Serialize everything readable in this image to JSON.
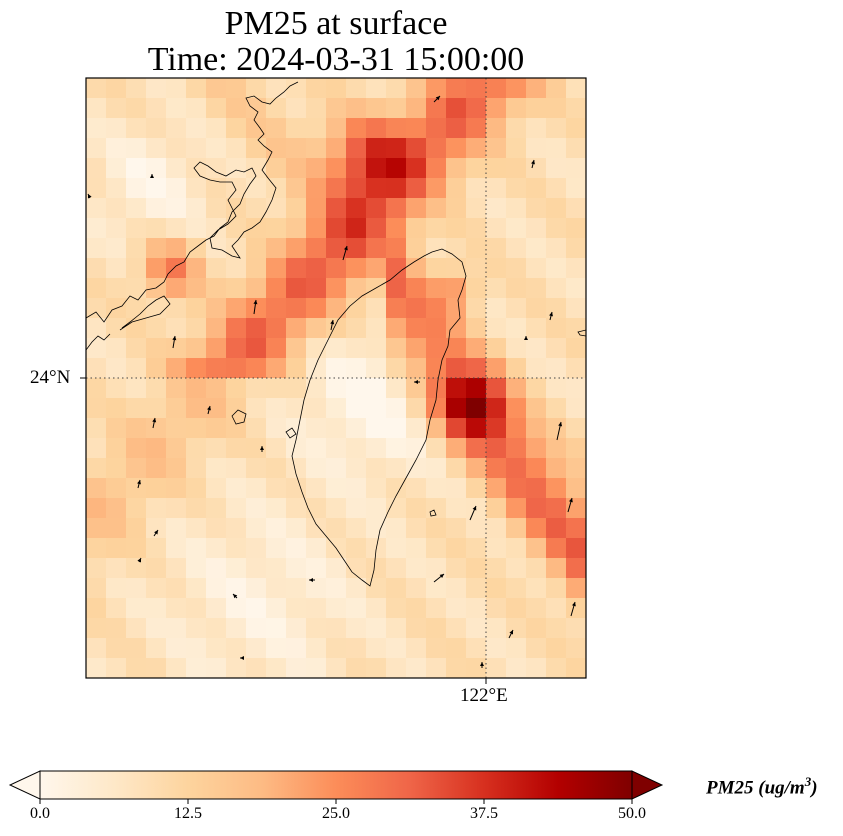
{
  "title": {
    "line1": "PM25 at surface",
    "line2": "Time: 2024-03-31 15:00:00"
  },
  "axes": {
    "lat_tick": "24°N",
    "lon_tick": "122°E",
    "gridline_style": "dotted"
  },
  "colorbar": {
    "label_main": "PM25 (ug/m",
    "label_exponent": "3",
    "label_close": ")",
    "ticks": [
      "0.0",
      "12.5",
      "25.0",
      "37.5",
      "50.0"
    ],
    "range": [
      0,
      50
    ],
    "extend": "both",
    "colormap": [
      "#fff7ec",
      "#fee8c8",
      "#fdd49e",
      "#fdbb84",
      "#fc8d59",
      "#ef6548",
      "#d7301f",
      "#b30000",
      "#7f0000"
    ]
  },
  "map": {
    "overlays": [
      "coastline",
      "wind-vectors"
    ],
    "colors": {
      "coastline": "#000000",
      "arrow": "#000000",
      "frame": "#000000"
    }
  }
}
